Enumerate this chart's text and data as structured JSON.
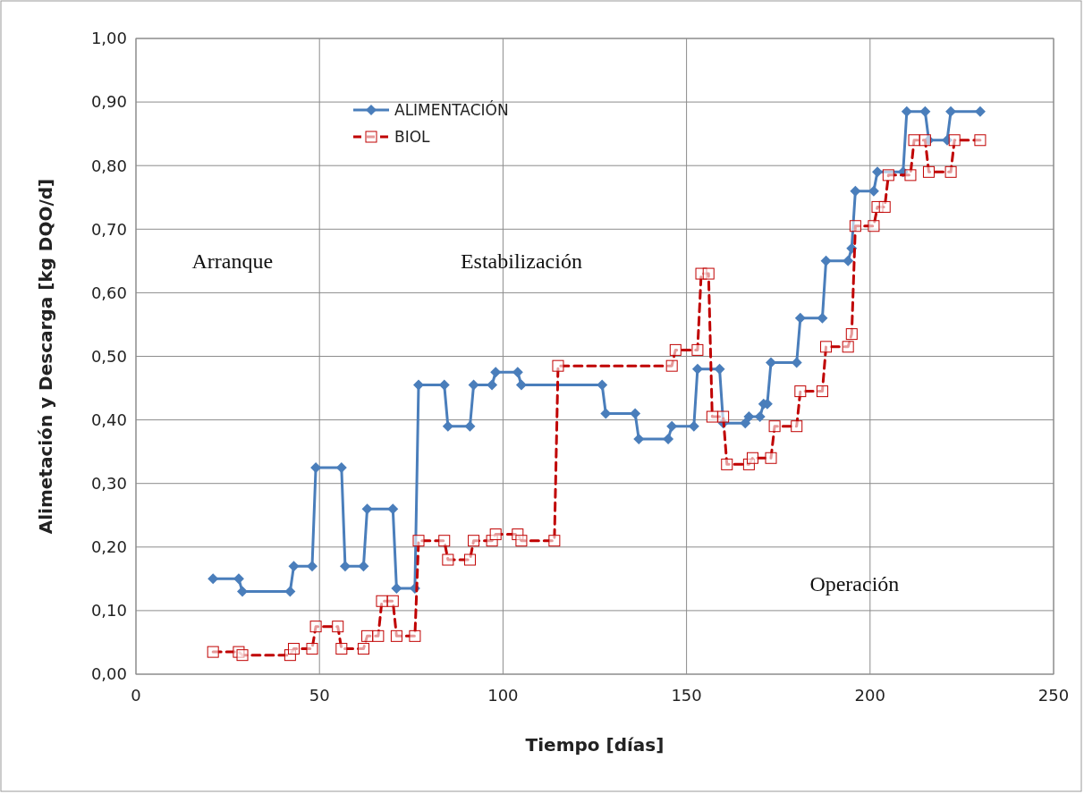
{
  "chart_data": {
    "type": "line",
    "xlabel": "Tiempo [días]",
    "ylabel": "Alimetación y Descarga [kg DQO/d]",
    "xlim": [
      0,
      250
    ],
    "xticks": [
      0,
      50,
      100,
      150,
      200,
      250
    ],
    "ylim": [
      0,
      1
    ],
    "yticks": [
      {
        "value": 0,
        "label": "0,00"
      },
      {
        "value": 0.1,
        "label": "0,10"
      },
      {
        "value": 0.2,
        "label": "0,20"
      },
      {
        "value": 0.3,
        "label": "0,30"
      },
      {
        "value": 0.4,
        "label": "0,40"
      },
      {
        "value": 0.5,
        "label": "0,50"
      },
      {
        "value": 0.6,
        "label": "0,60"
      },
      {
        "value": 0.7,
        "label": "0,70"
      },
      {
        "value": 0.8,
        "label": "0,80"
      },
      {
        "value": 0.9,
        "label": "0,90"
      },
      {
        "value": 1,
        "label": "1,00"
      }
    ],
    "grid": true,
    "legend": "top",
    "annotations": [
      "Arranque",
      "Estabilización",
      "Operación"
    ],
    "series": [
      {
        "name": "ALIMENTACIÓN",
        "color": "#4a7ebb",
        "marker": "diamond",
        "line_style": "solid",
        "x": [
          21,
          28,
          29,
          42,
          43,
          48,
          49,
          56,
          57,
          62,
          63,
          70,
          71,
          76,
          77,
          84,
          85,
          91,
          92,
          97,
          98,
          104,
          105,
          127,
          128,
          136,
          137,
          145,
          146,
          152,
          153,
          159,
          160,
          166,
          167,
          170,
          171,
          172,
          173,
          180,
          181,
          187,
          188,
          194,
          195,
          196,
          201,
          202,
          209,
          210,
          215,
          216,
          221,
          222,
          230
        ],
        "values": [
          0.15,
          0.15,
          0.13,
          0.13,
          0.17,
          0.17,
          0.325,
          0.325,
          0.17,
          0.17,
          0.26,
          0.26,
          0.135,
          0.135,
          0.455,
          0.455,
          0.39,
          0.39,
          0.455,
          0.455,
          0.475,
          0.475,
          0.455,
          0.455,
          0.41,
          0.41,
          0.37,
          0.37,
          0.39,
          0.39,
          0.48,
          0.48,
          0.395,
          0.395,
          0.405,
          0.405,
          0.425,
          0.425,
          0.49,
          0.49,
          0.56,
          0.56,
          0.65,
          0.65,
          0.67,
          0.76,
          0.76,
          0.79,
          0.79,
          0.885,
          0.885,
          0.84,
          0.84,
          0.885,
          0.885
        ]
      },
      {
        "name": "BIOL",
        "color": "#c00000",
        "marker": "square",
        "line_style": "dashed",
        "x": [
          21,
          28,
          29,
          42,
          43,
          48,
          49,
          55,
          56,
          62,
          63,
          66,
          67,
          70,
          71,
          76,
          77,
          84,
          85,
          91,
          92,
          97,
          98,
          104,
          105,
          114,
          115,
          146,
          147,
          153,
          154,
          156,
          157,
          160,
          161,
          167,
          168,
          173,
          174,
          180,
          181,
          187,
          188,
          194,
          195,
          196,
          201,
          202,
          204,
          205,
          211,
          212,
          215,
          216,
          222,
          223,
          230
        ],
        "values": [
          0.035,
          0.035,
          0.03,
          0.03,
          0.04,
          0.04,
          0.075,
          0.075,
          0.04,
          0.04,
          0.06,
          0.06,
          0.115,
          0.115,
          0.06,
          0.06,
          0.21,
          0.21,
          0.18,
          0.18,
          0.21,
          0.21,
          0.22,
          0.22,
          0.21,
          0.21,
          0.485,
          0.485,
          0.51,
          0.51,
          0.63,
          0.63,
          0.405,
          0.405,
          0.33,
          0.33,
          0.34,
          0.34,
          0.39,
          0.39,
          0.445,
          0.445,
          0.515,
          0.515,
          0.535,
          0.705,
          0.705,
          0.735,
          0.735,
          0.785,
          0.785,
          0.84,
          0.84,
          0.79,
          0.79,
          0.84,
          0.84
        ]
      }
    ]
  }
}
